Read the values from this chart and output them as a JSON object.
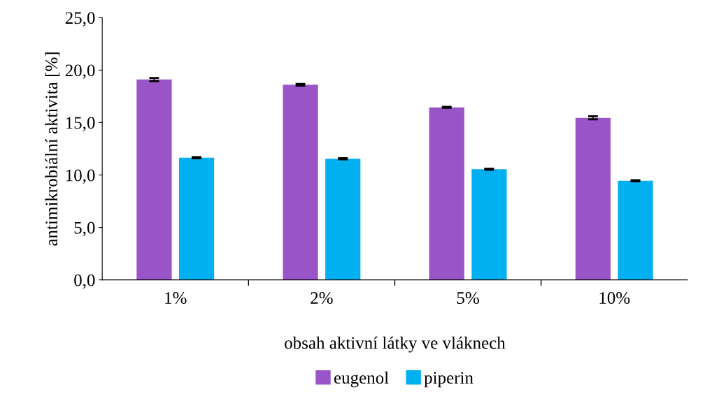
{
  "chart_data": {
    "type": "bar",
    "xlabel": "obsah aktivní látky ve vláknech",
    "ylabel": "antimikrobiální aktivita [%]",
    "categories": [
      "1%",
      "2%",
      "5%",
      "10%"
    ],
    "series": [
      {
        "name": "eugenol",
        "color": "#9954c8",
        "values": [
          19.1,
          18.6,
          16.45,
          15.45
        ],
        "errors": [
          0.15,
          0.08,
          0.05,
          0.15
        ]
      },
      {
        "name": "piperin",
        "color": "#00b0f0",
        "values": [
          11.65,
          11.55,
          10.55,
          9.45
        ],
        "errors": [
          0.06,
          0.06,
          0.06,
          0.05
        ]
      }
    ],
    "ylim": [
      0,
      25
    ],
    "yticks": [
      {
        "value": 0,
        "label": "0,0"
      },
      {
        "value": 5,
        "label": "5,0"
      },
      {
        "value": 10,
        "label": "10,0"
      },
      {
        "value": 15,
        "label": "15,0"
      },
      {
        "value": 20,
        "label": "20,0"
      },
      {
        "value": 25,
        "label": "25,0"
      }
    ],
    "grid": false,
    "legend": "bottom"
  }
}
